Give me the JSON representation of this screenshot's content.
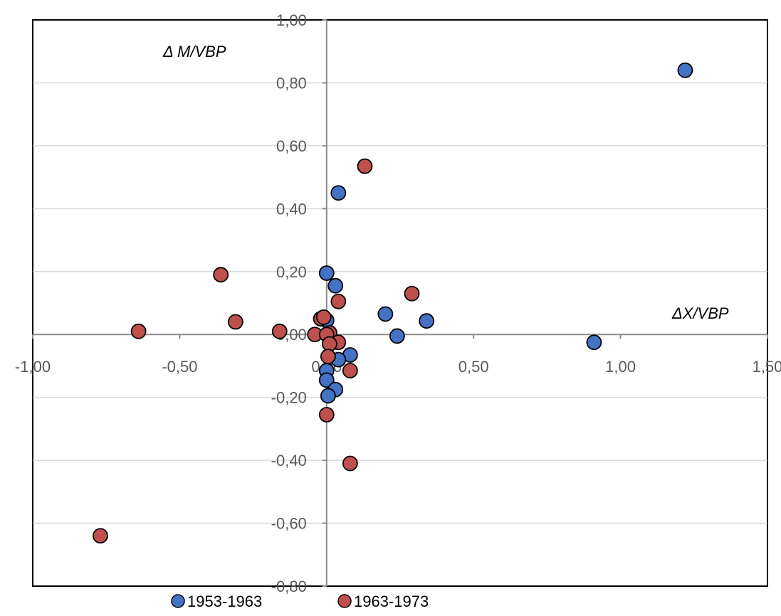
{
  "chart_data": {
    "type": "scatter",
    "xlabel": "ΔX/VBP",
    "ylabel": "Δ M/VBP",
    "xlim": [
      -1.0,
      1.5
    ],
    "ylim": [
      -0.8,
      1.0
    ],
    "x_ticks": [
      "-1,00",
      "-0,50",
      "0,00",
      "0,50",
      "1,00",
      "1,50"
    ],
    "x_tick_values": [
      -1.0,
      -0.5,
      0.0,
      0.5,
      1.0,
      1.5
    ],
    "y_ticks": [
      "1,00",
      "0,80",
      "0,60",
      "0,40",
      "0,20",
      "0,00",
      "-0,20",
      "-0,40",
      "-0,60",
      "-0,80"
    ],
    "y_tick_values": [
      1.0,
      0.8,
      0.6,
      0.4,
      0.2,
      0.0,
      -0.2,
      -0.4,
      -0.6,
      -0.8
    ],
    "grid": "horizontal",
    "legend_position": "bottom",
    "series": [
      {
        "name": "1953-1963",
        "color": "#4472C4",
        "points": [
          {
            "x": 1.22,
            "y": 0.84
          },
          {
            "x": 0.91,
            "y": -0.025
          },
          {
            "x": 0.34,
            "y": 0.043
          },
          {
            "x": 0.24,
            "y": -0.005
          },
          {
            "x": 0.2,
            "y": 0.065
          },
          {
            "x": 0.04,
            "y": 0.45
          },
          {
            "x": 0.0,
            "y": 0.195
          },
          {
            "x": 0.03,
            "y": 0.155
          },
          {
            "x": 0.0,
            "y": 0.045
          },
          {
            "x": 0.08,
            "y": -0.065
          },
          {
            "x": 0.04,
            "y": -0.08
          },
          {
            "x": 0.0,
            "y": -0.115
          },
          {
            "x": 0.0,
            "y": -0.145
          },
          {
            "x": 0.03,
            "y": -0.175
          },
          {
            "x": 0.005,
            "y": -0.195
          }
        ]
      },
      {
        "name": "1963-1973",
        "color": "#C0504D",
        "points": [
          {
            "x": -0.77,
            "y": -0.64
          },
          {
            "x": -0.64,
            "y": 0.01
          },
          {
            "x": -0.36,
            "y": 0.19
          },
          {
            "x": -0.31,
            "y": 0.04
          },
          {
            "x": -0.16,
            "y": 0.01
          },
          {
            "x": 0.13,
            "y": 0.535
          },
          {
            "x": 0.29,
            "y": 0.13
          },
          {
            "x": 0.04,
            "y": 0.105
          },
          {
            "x": -0.02,
            "y": 0.05
          },
          {
            "x": -0.01,
            "y": 0.055
          },
          {
            "x": -0.04,
            "y": 0.0
          },
          {
            "x": 0.01,
            "y": 0.005
          },
          {
            "x": 0.0,
            "y": 0.0
          },
          {
            "x": 0.04,
            "y": -0.025
          },
          {
            "x": 0.01,
            "y": -0.03
          },
          {
            "x": 0.005,
            "y": -0.07
          },
          {
            "x": 0.08,
            "y": -0.115
          },
          {
            "x": 0.0,
            "y": -0.255
          },
          {
            "x": 0.08,
            "y": -0.41
          }
        ]
      }
    ]
  }
}
